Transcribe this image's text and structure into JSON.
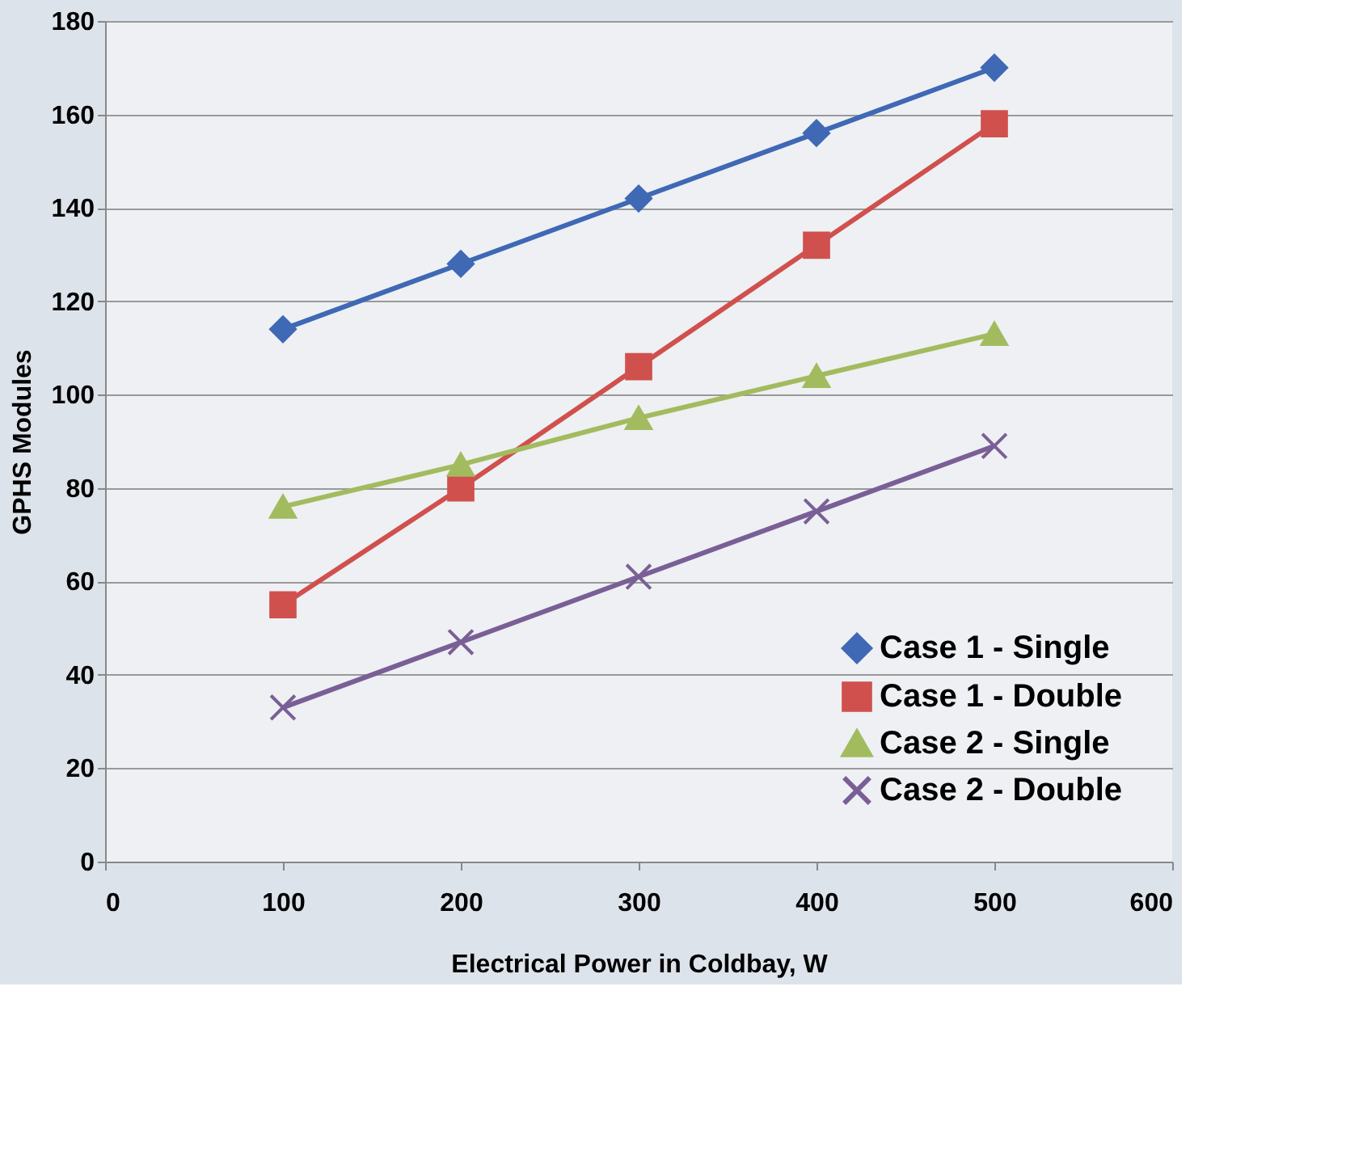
{
  "chart_data": {
    "type": "line",
    "xlabel": "Electrical Power in Coldbay, W",
    "ylabel": "GPHS Modules",
    "x": [
      100,
      200,
      300,
      400,
      500
    ],
    "series": [
      {
        "name": "Case 1 - Single",
        "color": "#3f68b5",
        "marker": "diamond",
        "values": [
          114,
          128,
          142,
          156,
          170
        ]
      },
      {
        "name": "Case 1 - Double",
        "color": "#d0504e",
        "marker": "square",
        "values": [
          55,
          80,
          106,
          132,
          158
        ]
      },
      {
        "name": "Case 2 - Single",
        "color": "#a3bb5f",
        "marker": "triangle",
        "values": [
          76,
          85,
          95,
          104,
          113
        ]
      },
      {
        "name": "Case 2 - Double",
        "color": "#7a5f96",
        "marker": "cross",
        "values": [
          33,
          47,
          61,
          75,
          89
        ]
      }
    ],
    "xlim": [
      0,
      600
    ],
    "xticks": [
      0,
      100,
      200,
      300,
      400,
      500,
      600
    ],
    "ylim": [
      0,
      180
    ],
    "yticks": [
      0,
      20,
      40,
      60,
      80,
      100,
      120,
      140,
      160,
      180
    ],
    "grid": "y",
    "legend": "bottom right",
    "line_style": "solid"
  }
}
